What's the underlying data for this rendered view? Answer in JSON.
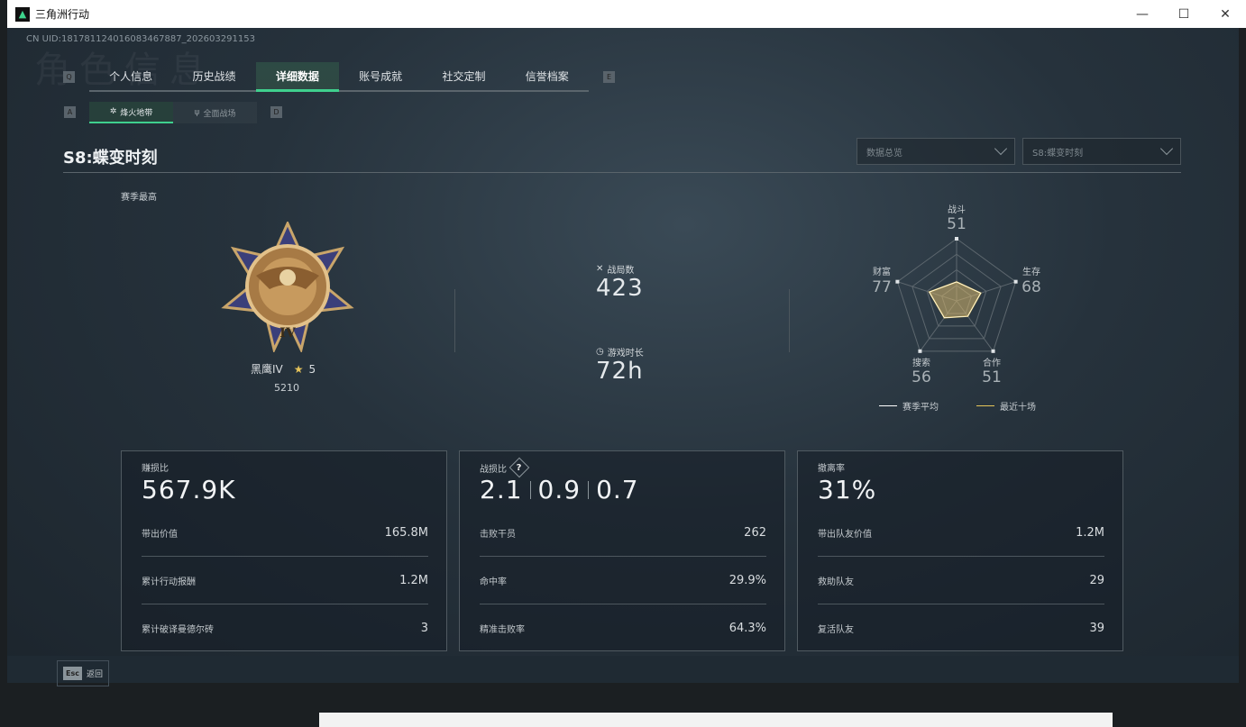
{
  "window": {
    "title": "三角洲行动",
    "minimize": "—",
    "maximize": "☐",
    "close": "✕"
  },
  "uid": "CN UID:181781124016083467887_202603291153",
  "ghost_title": "角色信息",
  "tabs": {
    "prev_key": "Q",
    "next_key": "E",
    "items": [
      {
        "label": "个人信息"
      },
      {
        "label": "历史战绩"
      },
      {
        "label": "详细数据",
        "active": true
      },
      {
        "label": "账号成就"
      },
      {
        "label": "社交定制"
      },
      {
        "label": "信誉档案"
      }
    ]
  },
  "subtabs": {
    "prev_key": "A",
    "next_key": "D",
    "items": [
      {
        "label": "烽火地带",
        "active": true
      },
      {
        "label": "全面战场"
      }
    ]
  },
  "season_title": "S8:蝶变时刻",
  "dropdowns": [
    {
      "value": "数据总览"
    },
    {
      "value": "S8:蝶变时刻"
    }
  ],
  "season_best": "赛季最高",
  "rank": {
    "name": "黑鹰IV",
    "stars": "5",
    "score": "5210"
  },
  "stats": {
    "matches_label": "战局数",
    "matches": "423",
    "playtime_label": "游戏时长",
    "playtime": "72h"
  },
  "radar": {
    "axes": [
      {
        "label": "战斗",
        "value": 51
      },
      {
        "label": "生存",
        "value": 68
      },
      {
        "label": "合作",
        "value": 51
      },
      {
        "label": "搜索",
        "value": 56
      },
      {
        "label": "财富",
        "value": 77
      }
    ],
    "legend": [
      {
        "label": "赛季平均",
        "color": "#ffffff"
      },
      {
        "label": "最近十场",
        "color": "#e6c65a"
      }
    ]
  },
  "cards": [
    {
      "title": "赚损比",
      "big": [
        "567.9K"
      ],
      "rows": [
        {
          "label": "带出价值",
          "value": "165.8M"
        },
        {
          "label": "累计行动报酬",
          "value": "1.2M"
        },
        {
          "label": "累计破译曼德尔砖",
          "value": "3"
        }
      ]
    },
    {
      "title": "战损比",
      "help": "?",
      "big": [
        "2.1",
        "0.9",
        "0.7"
      ],
      "rows": [
        {
          "label": "击败干员",
          "value": "262"
        },
        {
          "label": "命中率",
          "value": "29.9%"
        },
        {
          "label": "精准击败率",
          "value": "64.3%"
        }
      ]
    },
    {
      "title": "撤离率",
      "big": [
        "31%"
      ],
      "rows": [
        {
          "label": "带出队友价值",
          "value": "1.2M"
        },
        {
          "label": "救助队友",
          "value": "29"
        },
        {
          "label": "复活队友",
          "value": "39"
        }
      ]
    }
  ],
  "footer": {
    "esc_key": "Esc",
    "back": "返回"
  },
  "accent": "#3fd08e"
}
